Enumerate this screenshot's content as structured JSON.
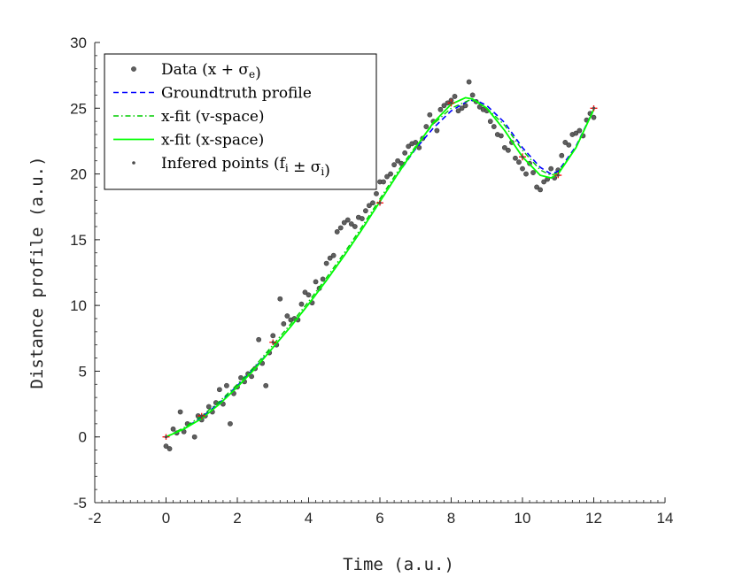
{
  "chart_data": {
    "type": "scatter",
    "xlabel": "Time (a.u.)",
    "ylabel": "Distance profile (a.u.)",
    "xlim": [
      -2,
      14
    ],
    "ylim": [
      -5,
      30
    ],
    "xticks": [
      -2,
      0,
      2,
      4,
      6,
      8,
      10,
      12,
      14
    ],
    "yticks": [
      -5,
      0,
      5,
      10,
      15,
      20,
      25,
      30
    ],
    "grid": false,
    "legend_position": "top-left",
    "colors": {
      "data": "#5f5f5f",
      "groundtruth": "#0000ff",
      "xfit_v": "#00cc00",
      "xfit_x": "#00ff00",
      "inferred": "#4a4a4a",
      "errorbar": "#ff0000",
      "axis": "#262626"
    },
    "legend": [
      {
        "key": "data",
        "label": "Data (x + σ",
        "sub": "e",
        "tail": ")"
      },
      {
        "key": "groundtruth",
        "label": "Groundtruth profile"
      },
      {
        "key": "xfit_v",
        "label": "x-fit (v-space)"
      },
      {
        "key": "xfit_x",
        "label": "x-fit (x-space)"
      },
      {
        "key": "inferred",
        "label": "Infered points (f",
        "sub": "i",
        "tail": " ± σ",
        "sub2": "i",
        "tail2": ")"
      }
    ],
    "series": [
      {
        "name": "Data (x + σe)",
        "style": "markers",
        "x": [
          0.0,
          0.1,
          0.2,
          0.3,
          0.4,
          0.5,
          0.6,
          0.8,
          0.9,
          1.0,
          1.1,
          1.2,
          1.3,
          1.4,
          1.5,
          1.6,
          1.7,
          1.8,
          1.9,
          2.0,
          2.1,
          2.2,
          2.3,
          2.4,
          2.5,
          2.6,
          2.7,
          2.8,
          2.9,
          3.0,
          3.1,
          3.2,
          3.3,
          3.4,
          3.5,
          3.6,
          3.7,
          3.8,
          3.9,
          4.0,
          4.1,
          4.2,
          4.3,
          4.4,
          4.5,
          4.6,
          4.7,
          4.8,
          4.9,
          5.0,
          5.1,
          5.2,
          5.3,
          5.4,
          5.5,
          5.6,
          5.7,
          5.8,
          5.9,
          6.0,
          6.1,
          6.2,
          6.3,
          6.4,
          6.5,
          6.6,
          6.7,
          6.8,
          6.9,
          7.0,
          7.1,
          7.2,
          7.3,
          7.4,
          7.5,
          7.6,
          7.7,
          7.8,
          7.9,
          8.0,
          8.1,
          8.2,
          8.3,
          8.4,
          8.5,
          8.6,
          8.7,
          8.8,
          8.9,
          9.0,
          9.1,
          9.2,
          9.3,
          9.4,
          9.5,
          9.6,
          9.7,
          9.8,
          9.9,
          10.0,
          10.1,
          10.2,
          10.3,
          10.4,
          10.5,
          10.6,
          10.7,
          10.8,
          10.9,
          11.0,
          11.1,
          11.2,
          11.3,
          11.4,
          11.5,
          11.6,
          11.7,
          11.8,
          11.9,
          12.0
        ],
        "y": [
          -0.7,
          -0.9,
          0.6,
          0.3,
          1.9,
          0.4,
          1.0,
          0.0,
          1.6,
          1.3,
          1.6,
          2.3,
          1.9,
          2.6,
          3.6,
          2.5,
          3.9,
          1.0,
          3.3,
          3.8,
          4.5,
          4.2,
          4.8,
          4.6,
          5.2,
          7.4,
          5.6,
          3.9,
          6.4,
          7.7,
          7.0,
          10.5,
          8.6,
          9.2,
          8.9,
          9.0,
          8.9,
          10.1,
          11.0,
          10.8,
          10.2,
          11.8,
          11.3,
          12.0,
          13.2,
          13.6,
          13.8,
          15.6,
          15.9,
          16.3,
          16.5,
          16.2,
          16.0,
          16.7,
          16.6,
          17.2,
          17.6,
          17.8,
          18.5,
          19.4,
          19.4,
          19.8,
          20.0,
          20.7,
          21.0,
          20.8,
          21.6,
          22.1,
          22.3,
          22.4,
          22.0,
          22.7,
          23.6,
          24.5,
          24.0,
          23.3,
          24.9,
          25.2,
          25.4,
          25.6,
          25.9,
          24.8,
          25.0,
          25.2,
          27.0,
          26.0,
          25.5,
          25.1,
          24.9,
          24.8,
          24.0,
          23.6,
          23.0,
          22.9,
          22.0,
          21.8,
          22.4,
          21.2,
          20.9,
          20.4,
          20.0,
          20.8,
          20.1,
          19.0,
          18.8,
          19.4,
          19.6,
          20.4,
          19.7,
          20.3,
          21.4,
          22.4,
          22.2,
          23.0,
          23.1,
          23.3,
          22.9,
          24.1,
          24.6,
          24.3
        ]
      },
      {
        "name": "Groundtruth profile",
        "style": "dashed",
        "x": [
          0.0,
          0.5,
          1.0,
          1.5,
          2.0,
          2.5,
          3.0,
          3.5,
          4.0,
          4.5,
          5.0,
          5.5,
          6.0,
          6.5,
          7.0,
          7.5,
          8.0,
          8.5,
          8.7,
          9.0,
          9.5,
          10.0,
          10.5,
          10.8,
          11.0,
          11.5,
          12.0
        ],
        "y": [
          0.0,
          0.6,
          1.5,
          2.6,
          3.9,
          5.3,
          6.8,
          8.4,
          10.1,
          11.9,
          13.8,
          15.8,
          17.9,
          20.0,
          21.9,
          23.5,
          24.8,
          25.6,
          25.6,
          25.2,
          23.9,
          22.0,
          20.5,
          20.0,
          20.2,
          22.1,
          24.9
        ]
      },
      {
        "name": "x-fit (v-space)",
        "style": "dashdot",
        "x": [
          0.0,
          0.5,
          1.0,
          1.5,
          2.0,
          2.5,
          3.0,
          3.5,
          4.0,
          4.5,
          5.0,
          5.5,
          6.0,
          6.5,
          7.0,
          7.5,
          8.0,
          8.5,
          8.7,
          9.0,
          9.5,
          10.0,
          10.5,
          10.8,
          11.0,
          11.5,
          12.0
        ],
        "y": [
          0.0,
          0.7,
          1.6,
          2.7,
          4.0,
          5.4,
          7.0,
          8.6,
          10.3,
          12.1,
          14.0,
          16.0,
          18.1,
          20.2,
          22.1,
          23.8,
          25.0,
          25.6,
          25.5,
          25.0,
          23.7,
          21.8,
          20.3,
          19.9,
          20.1,
          22.0,
          24.9
        ]
      },
      {
        "name": "x-fit (x-space)",
        "style": "solid",
        "x": [
          0.0,
          0.5,
          1.0,
          1.5,
          2.0,
          2.5,
          3.0,
          3.5,
          4.0,
          4.5,
          5.0,
          5.5,
          6.0,
          6.5,
          7.0,
          7.5,
          8.0,
          8.4,
          8.6,
          9.0,
          9.5,
          10.0,
          10.5,
          10.8,
          11.0,
          11.5,
          12.0
        ],
        "y": [
          0.0,
          0.6,
          1.4,
          2.5,
          3.8,
          5.2,
          6.8,
          8.4,
          10.1,
          11.9,
          13.8,
          15.8,
          17.9,
          20.0,
          22.0,
          23.9,
          25.3,
          25.8,
          25.7,
          25.0,
          23.3,
          21.3,
          19.9,
          19.7,
          20.0,
          22.0,
          24.9
        ]
      },
      {
        "name": "Infered points (fi ± σi)",
        "style": "errorbars",
        "x": [
          0.0,
          1.0,
          3.0,
          6.0,
          8.0,
          10.0,
          11.0,
          12.0
        ],
        "y": [
          0.0,
          1.6,
          7.2,
          17.8,
          25.4,
          21.3,
          19.9,
          25.0
        ],
        "err": [
          0.15,
          0.15,
          0.15,
          0.15,
          0.2,
          0.2,
          0.15,
          0.15
        ]
      }
    ]
  }
}
